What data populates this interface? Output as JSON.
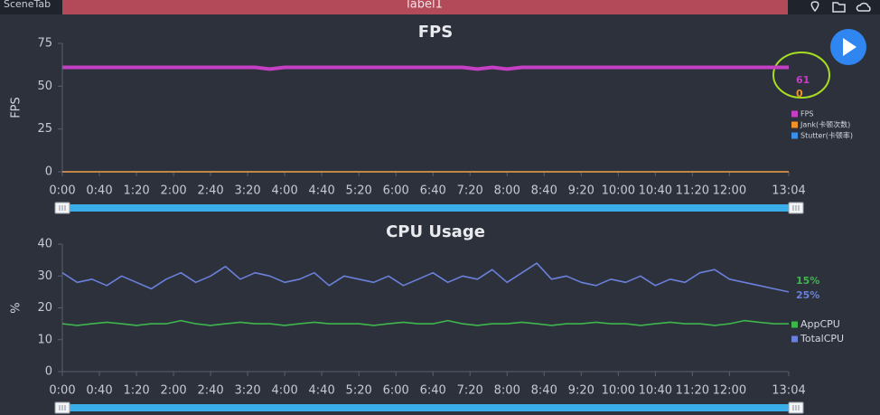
{
  "header": {
    "tab": "SceneTab",
    "label": "label1"
  },
  "chart_data": [
    {
      "type": "line",
      "title": "FPS",
      "y_label": "FPS",
      "x": [
        0,
        16,
        32,
        48,
        64,
        80,
        96,
        112,
        128,
        144,
        160,
        176,
        192,
        208,
        224,
        240,
        256,
        272,
        288,
        304,
        320,
        336,
        352,
        368,
        384,
        400,
        416,
        432,
        448,
        464,
        480,
        496,
        512,
        528,
        544,
        560,
        576,
        592,
        608,
        624,
        640,
        656,
        672,
        688,
        704,
        720,
        736,
        752,
        768,
        784
      ],
      "xlim": [
        0,
        784
      ],
      "xticks": [
        {
          "value": 0,
          "label": "0:00"
        },
        {
          "value": 40,
          "label": "0:40"
        },
        {
          "value": 80,
          "label": "1:20"
        },
        {
          "value": 120,
          "label": "2:00"
        },
        {
          "value": 160,
          "label": "2:40"
        },
        {
          "value": 200,
          "label": "3:20"
        },
        {
          "value": 240,
          "label": "4:00"
        },
        {
          "value": 280,
          "label": "4:40"
        },
        {
          "value": 320,
          "label": "5:20"
        },
        {
          "value": 360,
          "label": "6:00"
        },
        {
          "value": 400,
          "label": "6:40"
        },
        {
          "value": 440,
          "label": "7:20"
        },
        {
          "value": 480,
          "label": "8:00"
        },
        {
          "value": 520,
          "label": "8:40"
        },
        {
          "value": 560,
          "label": "9:20"
        },
        {
          "value": 600,
          "label": "10:00"
        },
        {
          "value": 640,
          "label": "10:40"
        },
        {
          "value": 680,
          "label": "11:20"
        },
        {
          "value": 720,
          "label": "12:00"
        },
        {
          "value": 784,
          "label": "13:04"
        }
      ],
      "ylim": [
        0,
        75
      ],
      "yticks": [
        0,
        25,
        50,
        75
      ],
      "series": [
        {
          "name": "FPS",
          "color": "#c43fc4",
          "values": [
            61,
            61,
            61,
            61,
            61,
            61,
            61,
            61,
            61,
            61,
            61,
            61,
            61,
            61,
            60,
            61,
            61,
            61,
            61,
            61,
            61,
            61,
            61,
            61,
            61,
            61,
            61,
            61,
            60,
            61,
            60,
            61,
            61,
            61,
            61,
            61,
            61,
            61,
            61,
            61,
            61,
            61,
            61,
            61,
            61,
            61,
            61,
            61,
            61,
            61
          ]
        },
        {
          "name": "Jank(卡顿次数)",
          "color": "#f0922a",
          "values": [
            0,
            0,
            0,
            0,
            0,
            0,
            0,
            0,
            0,
            0,
            0,
            0,
            0,
            0,
            0,
            0,
            0,
            0,
            0,
            0,
            0,
            0,
            0,
            0,
            0,
            0,
            0,
            0,
            0,
            0,
            0,
            0,
            0,
            0,
            0,
            0,
            0,
            0,
            0,
            0,
            0,
            0,
            0,
            0,
            0,
            0,
            0,
            0,
            0,
            0
          ]
        },
        {
          "name": "Stutter(卡顿率)",
          "color": "#3b8fe8",
          "values": [
            0,
            0,
            0,
            0,
            0,
            0,
            0,
            0,
            0,
            0,
            0,
            0,
            0,
            0,
            0,
            0,
            0,
            0,
            0,
            0,
            0,
            0,
            0,
            0,
            0,
            0,
            0,
            0,
            0,
            0,
            0,
            0,
            0,
            0,
            0,
            0,
            0,
            0,
            0,
            0,
            0,
            0,
            0,
            0,
            0,
            0,
            0,
            0,
            0,
            0
          ]
        }
      ]
    },
    {
      "type": "line",
      "title": "CPU Usage",
      "y_label": "%",
      "x": [
        0,
        16,
        32,
        48,
        64,
        80,
        96,
        112,
        128,
        144,
        160,
        176,
        192,
        208,
        224,
        240,
        256,
        272,
        288,
        304,
        320,
        336,
        352,
        368,
        384,
        400,
        416,
        432,
        448,
        464,
        480,
        496,
        512,
        528,
        544,
        560,
        576,
        592,
        608,
        624,
        640,
        656,
        672,
        688,
        704,
        720,
        736,
        752,
        768,
        784
      ],
      "xlim": [
        0,
        784
      ],
      "xticks": [
        {
          "value": 0,
          "label": "0:00"
        },
        {
          "value": 40,
          "label": "0:40"
        },
        {
          "value": 80,
          "label": "1:20"
        },
        {
          "value": 120,
          "label": "2:00"
        },
        {
          "value": 160,
          "label": "2:40"
        },
        {
          "value": 200,
          "label": "3:20"
        },
        {
          "value": 240,
          "label": "4:00"
        },
        {
          "value": 280,
          "label": "4:40"
        },
        {
          "value": 320,
          "label": "5:20"
        },
        {
          "value": 360,
          "label": "6:00"
        },
        {
          "value": 400,
          "label": "6:40"
        },
        {
          "value": 440,
          "label": "7:20"
        },
        {
          "value": 480,
          "label": "8:00"
        },
        {
          "value": 520,
          "label": "8:40"
        },
        {
          "value": 560,
          "label": "9:20"
        },
        {
          "value": 600,
          "label": "10:00"
        },
        {
          "value": 640,
          "label": "10:40"
        },
        {
          "value": 680,
          "label": "11:20"
        },
        {
          "value": 720,
          "label": "12:00"
        },
        {
          "value": 784,
          "label": "13:04"
        }
      ],
      "ylim": [
        0,
        40
      ],
      "yticks": [
        0,
        10,
        20,
        30,
        40
      ],
      "series": [
        {
          "name": "AppCPU",
          "color": "#3fb54d",
          "end_label": "15%",
          "values": [
            15,
            14.5,
            15,
            15.5,
            15,
            14.5,
            15,
            15,
            16,
            15,
            14.5,
            15,
            15.5,
            15,
            15,
            14.5,
            15,
            15.5,
            15,
            15,
            15,
            14.5,
            15,
            15.5,
            15,
            15,
            16,
            15,
            14.5,
            15,
            15,
            15.5,
            15,
            14.5,
            15,
            15,
            15.5,
            15,
            15,
            14.5,
            15,
            15.5,
            15,
            15,
            14.5,
            15,
            16,
            15.5,
            15,
            15
          ]
        },
        {
          "name": "TotalCPU",
          "color": "#6b80da",
          "end_label": "25%",
          "values": [
            31,
            28,
            29,
            27,
            30,
            28,
            26,
            29,
            31,
            28,
            30,
            33,
            29,
            31,
            30,
            28,
            29,
            31,
            27,
            30,
            29,
            28,
            30,
            27,
            29,
            31,
            28,
            30,
            29,
            32,
            28,
            31,
            34,
            29,
            30,
            28,
            27,
            29,
            28,
            30,
            27,
            29,
            28,
            31,
            32,
            29,
            28,
            27,
            26,
            25
          ]
        }
      ]
    }
  ]
}
